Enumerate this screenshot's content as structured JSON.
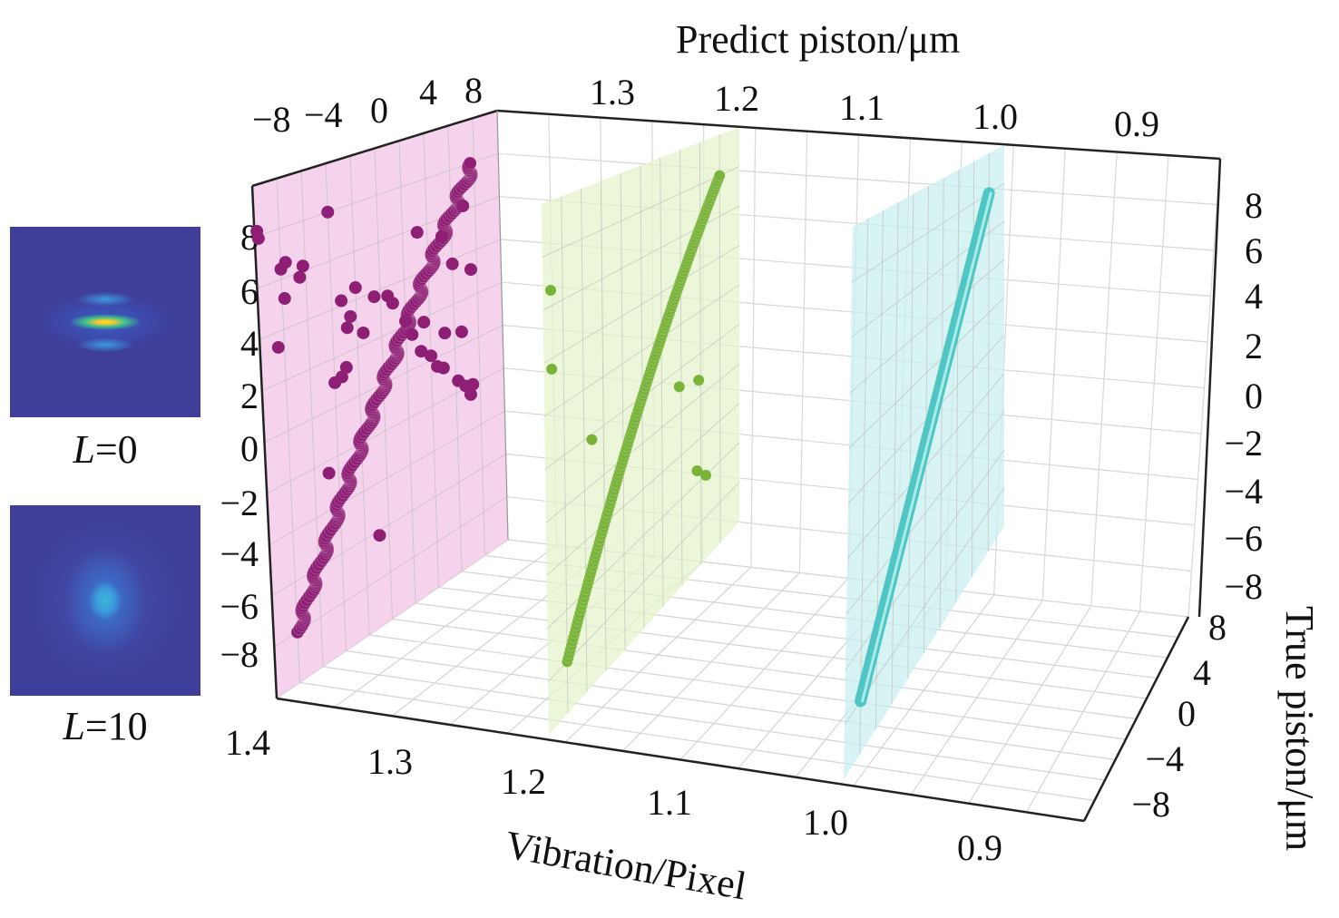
{
  "chart_data": {
    "type": "scatter",
    "subtype": "3d-scatter",
    "title": "",
    "axes": {
      "predict": {
        "label": "Predict piston/μm",
        "ticks": [
          "−8",
          "−4",
          "0",
          "4",
          "8"
        ],
        "range": [
          -10,
          10
        ]
      },
      "true": {
        "label": "True piston/μm",
        "ticks_left": [
          "8",
          "6",
          "4",
          "2",
          "0",
          "−2",
          "−4",
          "−6",
          "−8"
        ],
        "ticks_right": [
          "8",
          "6",
          "4",
          "2",
          "0",
          "−2",
          "−4",
          "−6",
          "−8"
        ],
        "ticks_depth": [
          "8",
          "4",
          "0",
          "−4",
          "−8"
        ],
        "range": [
          -10,
          10
        ]
      },
      "vibration": {
        "label": "Vibration/Pixel",
        "ticks_top": [
          "1.3",
          "1.2",
          "1.1",
          "1.0",
          "0.9"
        ],
        "ticks_bottom": [
          "1.4",
          "1.3",
          "1.2",
          "1.1",
          "1.0",
          "0.9"
        ],
        "range": [
          0.9,
          1.4
        ]
      }
    },
    "grid": true,
    "series": [
      {
        "vibration": 1.4,
        "color": "#8e1f74",
        "plane_color": "#f2c4e6",
        "line_true_range": [
          -8,
          8
        ],
        "outliers": [
          [
            -9.8,
            8.2
          ],
          [
            -9.7,
            7.9
          ],
          [
            -8,
            6.4
          ],
          [
            -7.6,
            6.6
          ],
          [
            -6.5,
            5.8
          ],
          [
            -6.2,
            6.2
          ],
          [
            -8.5,
            3.4
          ],
          [
            -7.8,
            5.2
          ],
          [
            -4,
            8
          ],
          [
            -2,
            4.5
          ],
          [
            -3.2,
            4.2
          ],
          [
            -2.5,
            3.4
          ],
          [
            -2.8,
            3
          ],
          [
            -1.5,
            2.5
          ],
          [
            -0.5,
            3.8
          ],
          [
            0.6,
            3.6
          ],
          [
            1,
            3.2
          ],
          [
            3.2,
            5.8
          ],
          [
            5.2,
            5.2
          ],
          [
            6,
            3.8
          ],
          [
            7,
            6.2
          ],
          [
            7.5,
            3.2
          ],
          [
            -4,
            1
          ],
          [
            -3.4,
            1.1
          ],
          [
            2.5,
            1.5
          ],
          [
            3.5,
            1.8
          ],
          [
            3.2,
            0.6
          ],
          [
            4,
            0.2
          ],
          [
            5.2,
            0.9
          ],
          [
            6.6,
            0.6
          ],
          [
            4.5,
            -0.4
          ],
          [
            5,
            -0.6
          ],
          [
            6.2,
            -1.5
          ],
          [
            6.8,
            -1.9
          ],
          [
            7.2,
            -2.4
          ],
          [
            7.4,
            -2
          ],
          [
            -0.8,
            -6.2
          ],
          [
            -4.8,
            -2.5
          ],
          [
            -3,
            1.4
          ],
          [
            2,
            2.2
          ]
        ]
      },
      {
        "vibration": 1.2,
        "color": "#7ab339",
        "plane_color": "#e6f4cc",
        "line_true_range": [
          -8,
          8
        ],
        "outliers": [
          [
            -9.2,
            6.6
          ],
          [
            -9.2,
            3.6
          ],
          [
            -5.2,
            -0.2
          ],
          [
            3.8,
            -0.8
          ],
          [
            5.8,
            -1.2
          ],
          [
            5.6,
            -5.4
          ],
          [
            6.5,
            -6
          ]
        ]
      },
      {
        "vibration": 1.0,
        "color": "#4fc6c3",
        "plane_color": "#c9efef",
        "line_true_range": [
          -8,
          8
        ],
        "outliers": []
      }
    ]
  },
  "insets": [
    {
      "label_var": "L",
      "label_value": "=0",
      "colormap": "parula"
    },
    {
      "label_var": "L",
      "label_value": "=10",
      "colormap": "parula"
    }
  ]
}
